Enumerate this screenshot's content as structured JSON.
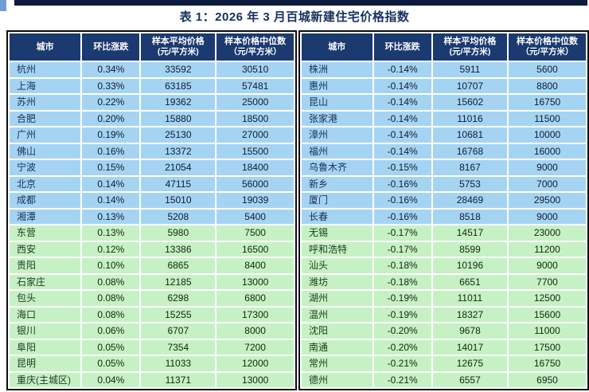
{
  "title": "表 1：2026 年 3 月百城新建住宅价格指数",
  "colors": {
    "header_bg": "#1a3a70",
    "top_strip": "#0e1b3d",
    "title_color": "#15305f",
    "border": "#0b0b14",
    "blue_row": "#a5d4f3",
    "green_row": "#c6f1c4",
    "city_text_blue": "#173056",
    "city_text_green": "#1c3a20",
    "number_text_blue": "#0e1c2e",
    "number_text_green": "#122610"
  },
  "headers": [
    {
      "key": "city",
      "line1": "城市",
      "line2": ""
    },
    {
      "key": "change",
      "line1": "环比涨跌",
      "line2": ""
    },
    {
      "key": "avg",
      "line1": "样本平均价格",
      "line2": "(元/平方米)"
    },
    {
      "key": "median",
      "line1": "样本价格中位数",
      "line2": "（元/平方米）"
    }
  ],
  "left_table": {
    "rows": [
      {
        "city": "杭州",
        "change": "0.34%",
        "avg": "33592",
        "median": "30510",
        "tone": "blue"
      },
      {
        "city": "上海",
        "change": "0.33%",
        "avg": "63185",
        "median": "57481",
        "tone": "blue"
      },
      {
        "city": "苏州",
        "change": "0.22%",
        "avg": "19362",
        "median": "25000",
        "tone": "blue"
      },
      {
        "city": "合肥",
        "change": "0.20%",
        "avg": "15880",
        "median": "18500",
        "tone": "blue"
      },
      {
        "city": "广州",
        "change": "0.19%",
        "avg": "25130",
        "median": "27000",
        "tone": "blue"
      },
      {
        "city": "佛山",
        "change": "0.16%",
        "avg": "13372",
        "median": "15500",
        "tone": "blue"
      },
      {
        "city": "宁波",
        "change": "0.15%",
        "avg": "21054",
        "median": "18400",
        "tone": "blue"
      },
      {
        "city": "北京",
        "change": "0.14%",
        "avg": "47115",
        "median": "56000",
        "tone": "blue"
      },
      {
        "city": "成都",
        "change": "0.14%",
        "avg": "15010",
        "median": "19039",
        "tone": "blue"
      },
      {
        "city": "湘潭",
        "change": "0.13%",
        "avg": "5208",
        "median": "5400",
        "tone": "blue"
      },
      {
        "city": "东营",
        "change": "0.13%",
        "avg": "5980",
        "median": "7500",
        "tone": "green"
      },
      {
        "city": "西安",
        "change": "0.12%",
        "avg": "13386",
        "median": "16500",
        "tone": "green"
      },
      {
        "city": "贵阳",
        "change": "0.10%",
        "avg": "6865",
        "median": "8400",
        "tone": "green"
      },
      {
        "city": "石家庄",
        "change": "0.08%",
        "avg": "12185",
        "median": "13000",
        "tone": "green"
      },
      {
        "city": "包头",
        "change": "0.08%",
        "avg": "6298",
        "median": "6800",
        "tone": "green"
      },
      {
        "city": "海口",
        "change": "0.08%",
        "avg": "15255",
        "median": "17300",
        "tone": "green"
      },
      {
        "city": "银川",
        "change": "0.06%",
        "avg": "6707",
        "median": "8000",
        "tone": "green"
      },
      {
        "city": "阜阳",
        "change": "0.05%",
        "avg": "7354",
        "median": "7200",
        "tone": "green"
      },
      {
        "city": "昆明",
        "change": "0.05%",
        "avg": "11033",
        "median": "12000",
        "tone": "green"
      },
      {
        "city": "重庆(主城区)",
        "change": "0.04%",
        "avg": "11371",
        "median": "13000",
        "tone": "green"
      }
    ]
  },
  "right_table": {
    "rows": [
      {
        "city": "株洲",
        "change": "-0.14%",
        "avg": "5911",
        "median": "5600",
        "tone": "blue"
      },
      {
        "city": "惠州",
        "change": "-0.14%",
        "avg": "10707",
        "median": "8800",
        "tone": "blue"
      },
      {
        "city": "昆山",
        "change": "-0.14%",
        "avg": "15602",
        "median": "16750",
        "tone": "blue"
      },
      {
        "city": "张家港",
        "change": "-0.14%",
        "avg": "11016",
        "median": "11500",
        "tone": "blue"
      },
      {
        "city": "漳州",
        "change": "-0.14%",
        "avg": "10681",
        "median": "10000",
        "tone": "blue"
      },
      {
        "city": "福州",
        "change": "-0.14%",
        "avg": "16768",
        "median": "16000",
        "tone": "blue"
      },
      {
        "city": "乌鲁木齐",
        "change": "-0.15%",
        "avg": "8167",
        "median": "9000",
        "tone": "blue"
      },
      {
        "city": "新乡",
        "change": "-0.16%",
        "avg": "5753",
        "median": "7000",
        "tone": "blue"
      },
      {
        "city": "厦门",
        "change": "-0.16%",
        "avg": "28469",
        "median": "29500",
        "tone": "blue"
      },
      {
        "city": "长春",
        "change": "-0.16%",
        "avg": "8518",
        "median": "9000",
        "tone": "blue"
      },
      {
        "city": "无锡",
        "change": "-0.17%",
        "avg": "14517",
        "median": "23000",
        "tone": "green"
      },
      {
        "city": "呼和浩特",
        "change": "-0.17%",
        "avg": "8599",
        "median": "11200",
        "tone": "green"
      },
      {
        "city": "汕头",
        "change": "-0.18%",
        "avg": "10196",
        "median": "9000",
        "tone": "green"
      },
      {
        "city": "潍坊",
        "change": "-0.18%",
        "avg": "6651",
        "median": "7700",
        "tone": "green"
      },
      {
        "city": "湖州",
        "change": "-0.19%",
        "avg": "11011",
        "median": "12500",
        "tone": "green"
      },
      {
        "city": "温州",
        "change": "-0.19%",
        "avg": "18327",
        "median": "15600",
        "tone": "green"
      },
      {
        "city": "沈阳",
        "change": "-0.20%",
        "avg": "9678",
        "median": "11000",
        "tone": "green"
      },
      {
        "city": "南通",
        "change": "-0.20%",
        "avg": "14017",
        "median": "17500",
        "tone": "green"
      },
      {
        "city": "常州",
        "change": "-0.21%",
        "avg": "12675",
        "median": "16750",
        "tone": "green"
      },
      {
        "city": "德州",
        "change": "-0.21%",
        "avg": "6557",
        "median": "6950",
        "tone": "green"
      }
    ]
  }
}
